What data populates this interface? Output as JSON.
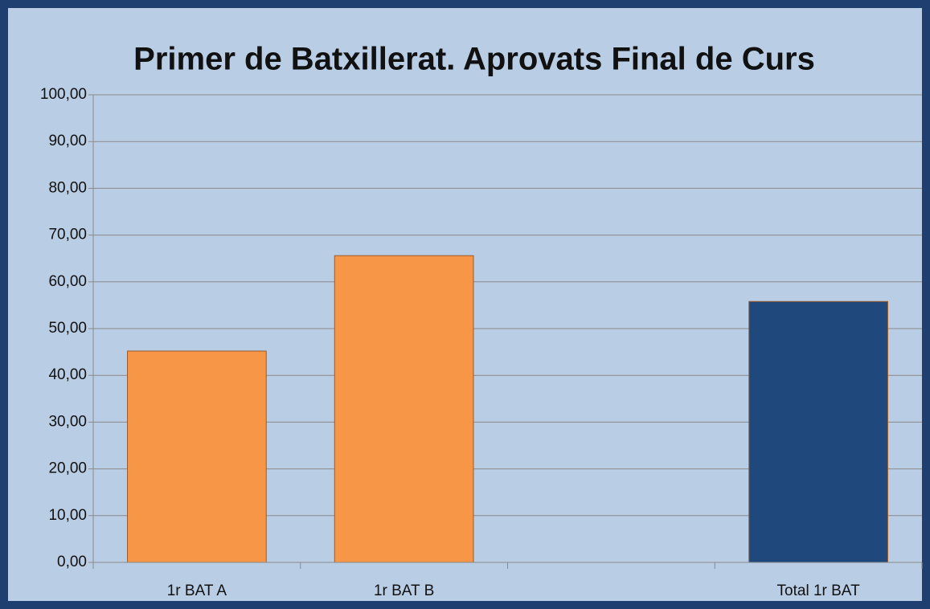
{
  "chart_data": {
    "type": "bar",
    "title": "Primer de Batxillerat. Aprovats Final de Curs",
    "categories": [
      "1r BAT A",
      "1r BAT B",
      null,
      "Total 1r BAT"
    ],
    "values": [
      45.2,
      65.6,
      null,
      55.8
    ],
    "colors": [
      "#f79646",
      "#f79646",
      null,
      "#1f497d"
    ],
    "ylim": [
      0,
      100
    ],
    "yticks": [
      {
        "value": 0,
        "label": "0,00"
      },
      {
        "value": 10,
        "label": "10,00"
      },
      {
        "value": 20,
        "label": "20,00"
      },
      {
        "value": 30,
        "label": "30,00"
      },
      {
        "value": 40,
        "label": "40,00"
      },
      {
        "value": 50,
        "label": "50,00"
      },
      {
        "value": 60,
        "label": "60,00"
      },
      {
        "value": 70,
        "label": "70,00"
      },
      {
        "value": 80,
        "label": "80,00"
      },
      {
        "value": 90,
        "label": "90,00"
      },
      {
        "value": 100,
        "label": "100,00"
      }
    ],
    "grid": true
  }
}
